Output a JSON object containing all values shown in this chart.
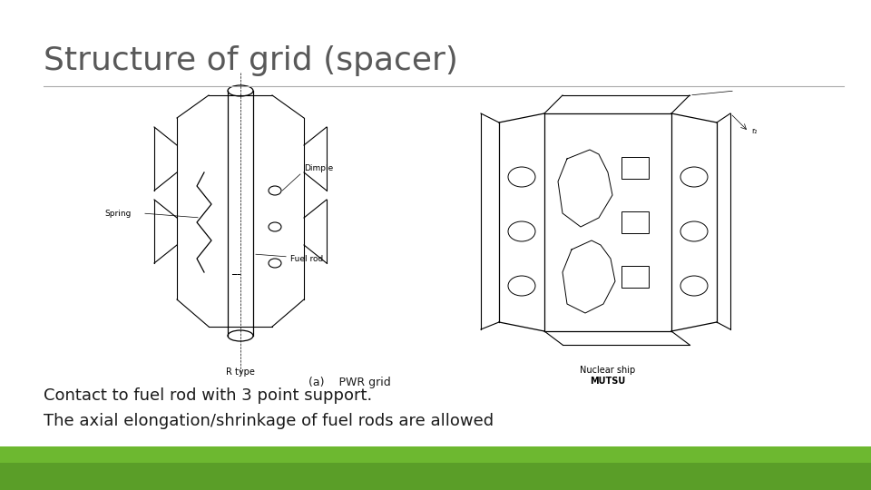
{
  "title": "Structure of grid (spacer)",
  "line1": "Contact to fuel rod with 3 point support.",
  "line2": "The axial elongation/shrinkage of fuel rods are allowed",
  "caption": "(a)    PWR grid",
  "background_color": "#ffffff",
  "title_color": "#595959",
  "text_color": "#1a1a1a",
  "bar_color": "#5a9e28",
  "title_fontsize": 26,
  "body_fontsize": 13,
  "caption_fontsize": 9,
  "divider_color": "#aaaaaa"
}
